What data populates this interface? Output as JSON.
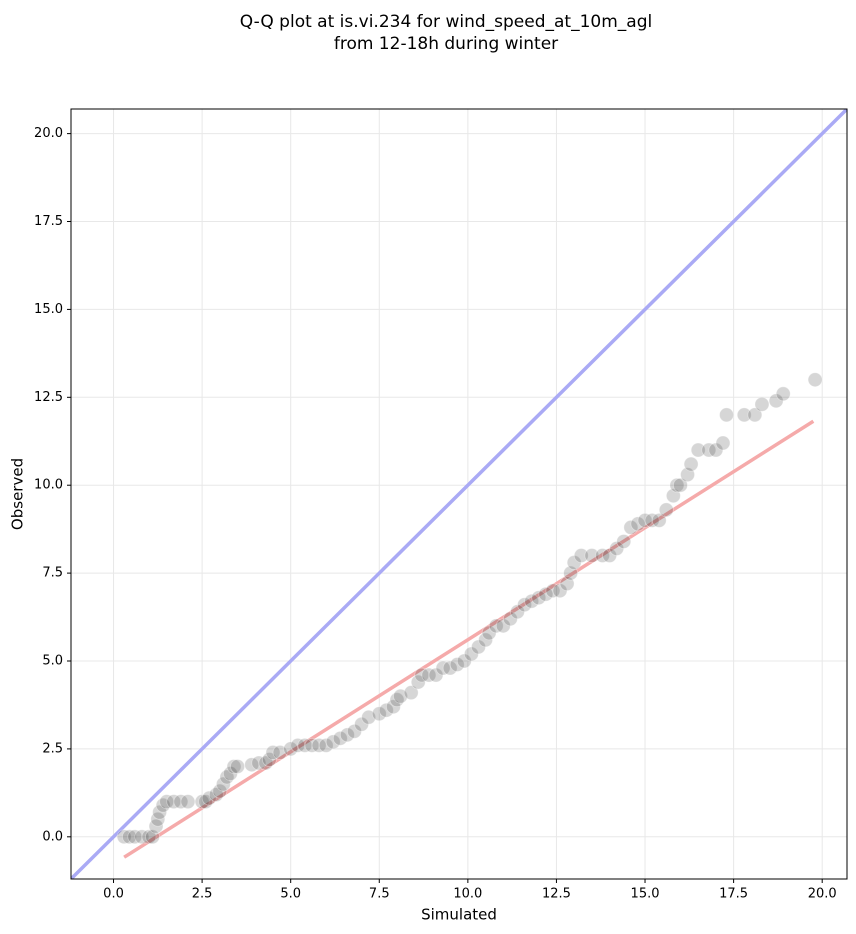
{
  "chart_data": {
    "type": "scatter",
    "title": [
      "Q-Q plot at is.vi.234 for wind_speed_at_10m_agl",
      "from 12-18h during winter"
    ],
    "x_label": "Simulated",
    "y_label": "Observed",
    "xlim": [
      -1.2,
      20.7
    ],
    "ylim": [
      -1.2,
      20.7
    ],
    "xticks": [
      {
        "value": 0,
        "label": "0.0"
      },
      {
        "value": 2.5,
        "label": "2.5"
      },
      {
        "value": 5,
        "label": "5.0"
      },
      {
        "value": 7.5,
        "label": "7.5"
      },
      {
        "value": 10,
        "label": "10.0"
      },
      {
        "value": 12.5,
        "label": "12.5"
      },
      {
        "value": 15,
        "label": "15.0"
      },
      {
        "value": 17.5,
        "label": "17.5"
      },
      {
        "value": 20,
        "label": "20.0"
      }
    ],
    "yticks": [
      {
        "value": 0,
        "label": "0.0"
      },
      {
        "value": 2.5,
        "label": "2.5"
      },
      {
        "value": 5,
        "label": "5.0"
      },
      {
        "value": 7.5,
        "label": "7.5"
      },
      {
        "value": 10,
        "label": "10.0"
      },
      {
        "value": 12.5,
        "label": "12.5"
      },
      {
        "value": 15,
        "label": "15.0"
      },
      {
        "value": 17.5,
        "label": "17.5"
      },
      {
        "value": 20,
        "label": "20.0"
      }
    ],
    "grid": true,
    "color": "#333333",
    "x": [
      0.3,
      0.45,
      0.6,
      0.8,
      1.0,
      1.1,
      1.2,
      1.25,
      1.3,
      1.4,
      1.5,
      1.7,
      1.9,
      2.1,
      2.5,
      2.6,
      2.7,
      2.9,
      3.0,
      3.1,
      3.2,
      3.3,
      3.4,
      3.5,
      3.9,
      4.1,
      4.3,
      4.4,
      4.5,
      4.7,
      5.0,
      5.2,
      5.4,
      5.6,
      5.8,
      6.0,
      6.2,
      6.4,
      6.6,
      6.8,
      7.0,
      7.2,
      7.5,
      7.7,
      7.9,
      8.0,
      8.1,
      8.4,
      8.6,
      8.7,
      8.9,
      9.1,
      9.3,
      9.5,
      9.7,
      9.9,
      10.1,
      10.3,
      10.5,
      10.6,
      10.8,
      11.0,
      11.2,
      11.4,
      11.6,
      11.8,
      12.0,
      12.2,
      12.4,
      12.6,
      12.8,
      12.9,
      13.0,
      13.2,
      13.5,
      13.8,
      14.0,
      14.2,
      14.4,
      14.6,
      14.8,
      15.0,
      15.2,
      15.4,
      15.6,
      15.8,
      15.9,
      16.0,
      16.2,
      16.3,
      16.5,
      16.8,
      17.0,
      17.2,
      17.3,
      17.8,
      18.1,
      18.3,
      18.7,
      18.9,
      19.8
    ],
    "values": [
      0,
      0,
      0,
      0,
      0,
      0,
      0.3,
      0.5,
      0.7,
      0.9,
      1,
      1,
      1,
      1,
      1,
      1,
      1.1,
      1.2,
      1.3,
      1.5,
      1.7,
      1.8,
      2,
      2,
      2.05,
      2.1,
      2.1,
      2.2,
      2.4,
      2.4,
      2.5,
      2.6,
      2.6,
      2.6,
      2.6,
      2.6,
      2.7,
      2.8,
      2.9,
      3.0,
      3.2,
      3.4,
      3.5,
      3.6,
      3.7,
      3.9,
      4.0,
      4.1,
      4.4,
      4.6,
      4.6,
      4.6,
      4.8,
      4.8,
      4.9,
      5.0,
      5.2,
      5.4,
      5.6,
      5.8,
      6.0,
      6.0,
      6.2,
      6.4,
      6.6,
      6.7,
      6.8,
      6.9,
      7.0,
      7.0,
      7.2,
      7.5,
      7.8,
      8.0,
      8.0,
      8.0,
      8.0,
      8.2,
      8.4,
      8.8,
      8.9,
      9.0,
      9.0,
      9.0,
      9.3,
      9.7,
      10.0,
      10.0,
      10.3,
      10.6,
      11,
      11,
      11,
      11.2,
      12,
      12,
      12,
      12.3,
      12.4,
      12.6,
      13
    ],
    "lines": [
      {
        "color": "#aaaaf5",
        "x": [
          -1.2,
          20.7
        ],
        "values": [
          -1.2,
          20.7
        ]
      },
      {
        "color": "#f5aaaa",
        "x": [
          0.3,
          19.75
        ],
        "values": [
          -0.58,
          11.82
        ]
      }
    ]
  }
}
